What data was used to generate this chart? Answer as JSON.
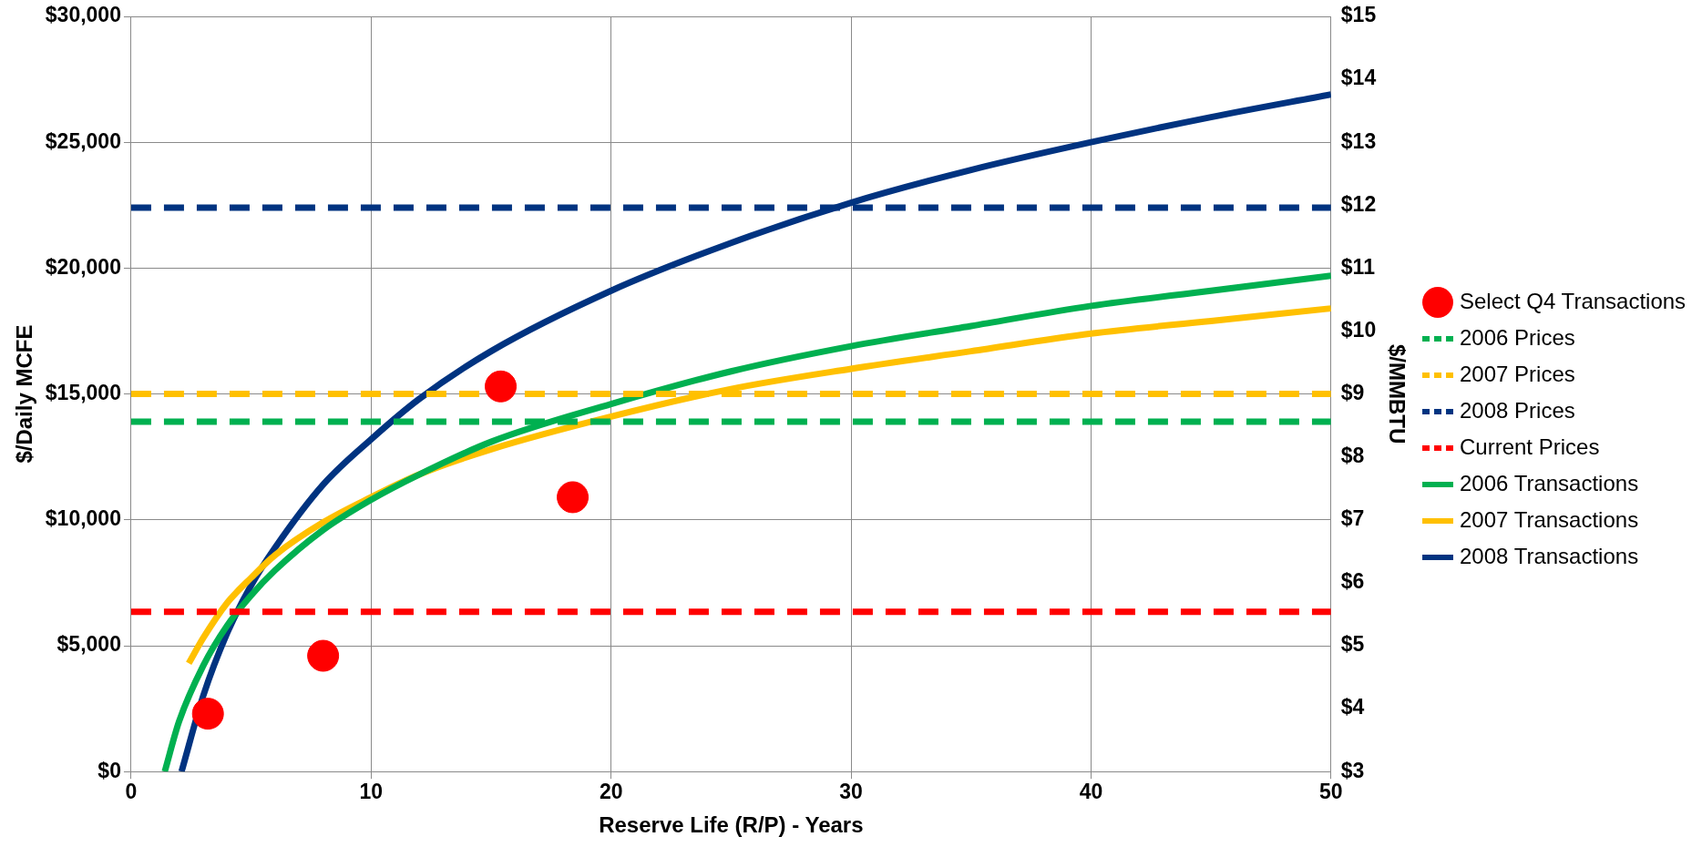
{
  "chart_data": {
    "type": "line",
    "xlabel": "Reserve Life (R/P) - Years",
    "ylabel": "$/Daily MCFE",
    "y2label": "$/MMBTU",
    "xlim": [
      0,
      50
    ],
    "xticks": [
      0,
      10,
      20,
      30,
      40,
      50
    ],
    "ylim": [
      0,
      30000
    ],
    "yticks": [
      {
        "value": 0,
        "label": "$0"
      },
      {
        "value": 5000,
        "label": "$5,000"
      },
      {
        "value": 10000,
        "label": "$10,000"
      },
      {
        "value": 15000,
        "label": "$15,000"
      },
      {
        "value": 20000,
        "label": "$20,000"
      },
      {
        "value": 25000,
        "label": "$25,000"
      },
      {
        "value": 30000,
        "label": "$30,000"
      }
    ],
    "y2lim": [
      3,
      15
    ],
    "y2ticks": [
      {
        "value": 3,
        "label": "$3"
      },
      {
        "value": 4,
        "label": "$4"
      },
      {
        "value": 5,
        "label": "$5"
      },
      {
        "value": 6,
        "label": "$6"
      },
      {
        "value": 7,
        "label": "$7"
      },
      {
        "value": 8,
        "label": "$8"
      },
      {
        "value": 9,
        "label": "$9"
      },
      {
        "value": 10,
        "label": "$10"
      },
      {
        "value": 11,
        "label": "$11"
      },
      {
        "value": 12,
        "label": "$12"
      },
      {
        "value": 13,
        "label": "$13"
      },
      {
        "value": 14,
        "label": "$14"
      },
      {
        "value": 15,
        "label": "$15"
      }
    ],
    "grid": true,
    "legend": "right",
    "series": [
      {
        "name": "Select Q4 Transactions",
        "type": "scatter",
        "marker": "circle",
        "color": "#ff0000",
        "x": [
          3.2,
          8,
          15.4,
          18.4
        ],
        "values": [
          2300,
          4600,
          15300,
          10900
        ]
      },
      {
        "name": "2006 Prices",
        "type": "line",
        "line_style": "dashed",
        "marker": "none",
        "color": "#00b050",
        "x": [
          0,
          50
        ],
        "values": [
          13900,
          13900
        ]
      },
      {
        "name": "2007 Prices",
        "type": "line",
        "line_style": "dashed",
        "marker": "none",
        "color": "#ffc000",
        "x": [
          0,
          50
        ],
        "values": [
          15000,
          15000
        ]
      },
      {
        "name": "2008 Prices",
        "type": "line",
        "line_style": "dashed",
        "marker": "none",
        "color": "#003380",
        "x": [
          0,
          50
        ],
        "values": [
          22400,
          22400
        ]
      },
      {
        "name": "Current Prices",
        "type": "line",
        "line_style": "dashed",
        "marker": "none",
        "color": "#ff0000",
        "x": [
          0,
          50
        ],
        "values": [
          6350,
          6350
        ]
      },
      {
        "name": "2006 Transactions",
        "type": "line",
        "line_style": "solid",
        "marker": "none",
        "color": "#00b050",
        "x": [
          1.4,
          2,
          3,
          4,
          5,
          6,
          8,
          10,
          12,
          15,
          20,
          25,
          30,
          35,
          40,
          45,
          50
        ],
        "values": [
          0,
          2000,
          4200,
          5800,
          7000,
          8000,
          9600,
          10800,
          11800,
          13100,
          14600,
          15900,
          16900,
          17700,
          18500,
          19100,
          19700
        ]
      },
      {
        "name": "2007 Transactions",
        "type": "line",
        "line_style": "solid",
        "marker": "none",
        "color": "#ffc000",
        "x": [
          2.4,
          3,
          4,
          5,
          6,
          8,
          10,
          12,
          15,
          20,
          25,
          30,
          35,
          40,
          45,
          50
        ],
        "values": [
          4300,
          5300,
          6700,
          7700,
          8600,
          9900,
          10900,
          11800,
          12800,
          14100,
          15200,
          16000,
          16700,
          17400,
          17900,
          18400
        ]
      },
      {
        "name": "2008 Transactions",
        "type": "line",
        "line_style": "solid",
        "marker": "none",
        "color": "#003380",
        "x": [
          2.1,
          3,
          4,
          5,
          6,
          8,
          10,
          12,
          15,
          20,
          25,
          30,
          35,
          40,
          45,
          50
        ],
        "values": [
          0,
          3000,
          5500,
          7400,
          8900,
          11400,
          13200,
          14800,
          16700,
          19100,
          21000,
          22600,
          23900,
          25000,
          26000,
          26900
        ]
      }
    ]
  }
}
